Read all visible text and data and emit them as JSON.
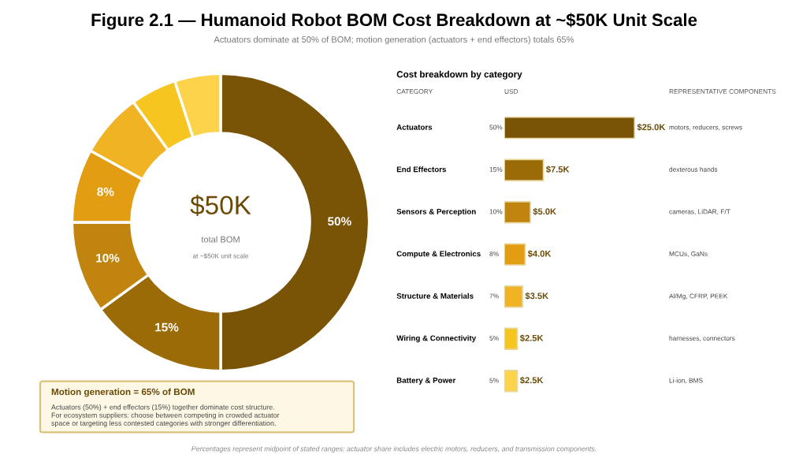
{
  "chart_data": [
    {
      "type": "donut",
      "title": "Figure 2.1 — Humanoid Robot BOM Cost Breakdown at ~$50K Unit Scale",
      "subtitle": "Actuators dominate at 50% of BOM; motion generation (actuators + end effectors) totals 65%",
      "categories": [
        null,
        null,
        null,
        null,
        null,
        null,
        null
      ],
      "values": [
        50,
        15,
        10,
        8,
        7,
        5,
        5
      ],
      "value_labels": [
        "50%",
        "15%",
        "10%",
        "8%",
        null,
        null,
        null
      ],
      "colors": [
        "#7a5406",
        "#9b6b08",
        "#c0840f",
        "#e39d12",
        "#f0b323",
        "#f6c51f",
        "#fcd34a"
      ],
      "annotations": [
        "$50K",
        "total BOM",
        "at ~$50K unit scale",
        "Motion generation = 65% of BOM",
        "Actuators (50%) + end effectors (15%) together dominate cost structure.\nFor ecosystem suppliers: choose between competing in crowded actuator\nspace or targeting less contested categories with stronger differentiation.",
        "Percentages represent midpoint of stated ranges; actuator share includes electric motors, reducers, and transmission components."
      ]
    },
    {
      "type": "bar",
      "orientation": "horizontal",
      "title": "Cost breakdown by category",
      "ylabel": "CATEGORY",
      "xlabel": "USD",
      "tick_labels": "y",
      "categories": [
        "Actuators",
        "End Effectors",
        "Sensors & Perception",
        "Compute & Electronics",
        "Structure & Materials",
        "Wiring & Connectivity",
        "Battery & Power"
      ],
      "values": [
        25.0,
        7.5,
        5.0,
        4.0,
        3.5,
        2.5,
        2.5
      ],
      "value_labels": [
        "$25.0K",
        "$7.5K",
        "$5.0K",
        "$4.0K",
        "$3.5K",
        "$2.5K",
        "$2.5K"
      ],
      "colors": [
        "#7a5406",
        "#9b6b08",
        "#c0840f",
        "#e39d12",
        "#f0b323",
        "#f6c51f",
        "#fcd34a"
      ],
      "annotations": [
        "REPRESENTATIVE COMPONENTS",
        "50%",
        "15%",
        "10%",
        "8%",
        "7%",
        "5%",
        "5%",
        "motors, reducers, screws",
        "dexterous hands",
        "cameras, LiDAR, F/T",
        "MCUs, GaNs",
        "Al/Mg, CFRP, PEEK",
        "harnesses, connectors",
        "Li-ion, BMS"
      ]
    }
  ]
}
